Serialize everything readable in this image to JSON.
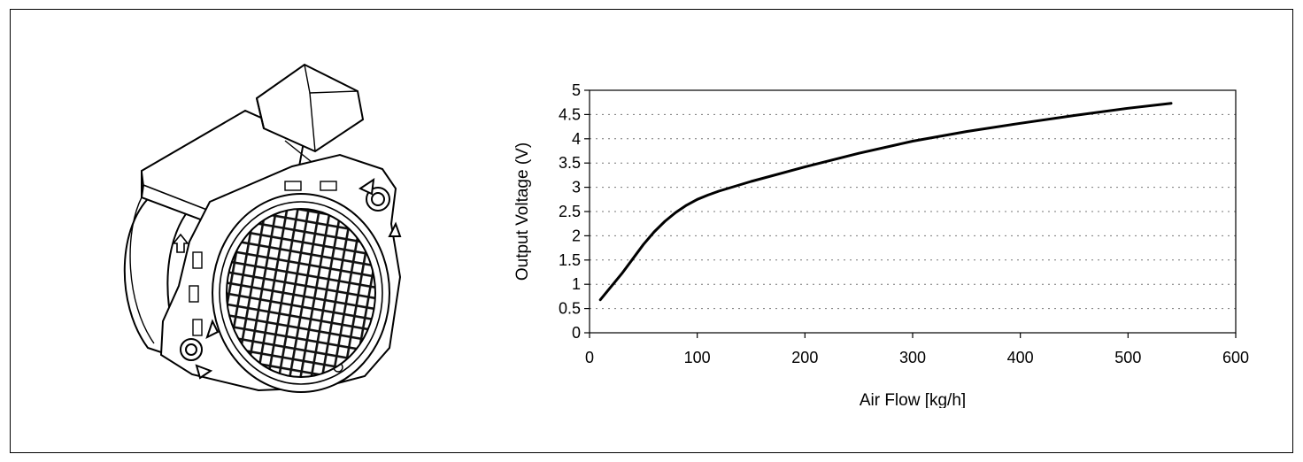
{
  "figure": {
    "illustration": "mass-air-flow-sensor"
  },
  "chart_data": {
    "type": "line",
    "xlabel": "Air Flow [kg/h]",
    "ylabel": "Output Voltage (V)",
    "xlim": [
      0,
      600
    ],
    "ylim": [
      0,
      5
    ],
    "xticks": [
      "0",
      "100",
      "200",
      "300",
      "400",
      "500",
      "600"
    ],
    "yticks": [
      "0",
      "0.5",
      "1",
      "1.5",
      "2",
      "2.5",
      "3",
      "3.5",
      "4",
      "4.5",
      "5"
    ],
    "grid": "horizontal dotted",
    "series": [
      {
        "color": "#000000",
        "x": [
          10,
          20,
          30,
          40,
          50,
          60,
          70,
          80,
          90,
          100,
          110,
          120,
          150,
          200,
          250,
          300,
          350,
          400,
          450,
          500,
          540
        ],
        "y": [
          0.68,
          0.95,
          1.22,
          1.52,
          1.82,
          2.08,
          2.3,
          2.48,
          2.63,
          2.75,
          2.84,
          2.92,
          3.12,
          3.42,
          3.7,
          3.95,
          4.15,
          4.32,
          4.48,
          4.63,
          4.73
        ]
      }
    ]
  }
}
